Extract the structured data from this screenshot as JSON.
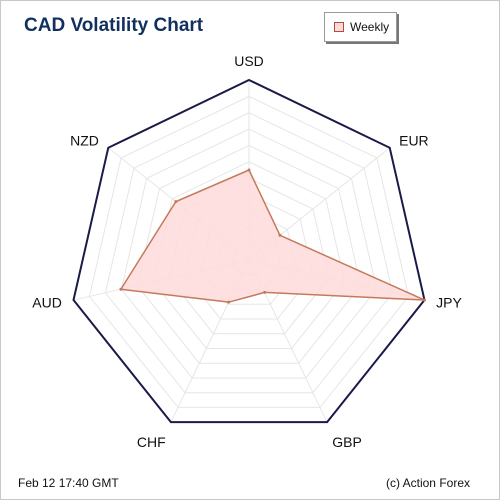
{
  "title": "CAD Volatility Chart",
  "legend": {
    "label": "Weekly"
  },
  "footer": {
    "timestamp": "Feb 12  17:40 GMT",
    "credit": "(c) Action Forex"
  },
  "colors": {
    "frame": "#1a1a4a",
    "grid": "#e6e6e6",
    "series_fill": "#ffdada",
    "series_stroke": "#c47a5a",
    "title": "#12305e"
  },
  "chart_data": {
    "type": "radar",
    "title": "CAD Volatility Chart",
    "categories": [
      "USD",
      "EUR",
      "JPY",
      "GBP",
      "CHF",
      "AUD",
      "NZD"
    ],
    "series": [
      {
        "name": "Weekly",
        "values": [
          0.5,
          0.22,
          1.0,
          0.2,
          0.26,
          0.73,
          0.52
        ]
      }
    ],
    "range": [
      0,
      1
    ],
    "grid_rings": 11,
    "legend_position": "top-right"
  }
}
